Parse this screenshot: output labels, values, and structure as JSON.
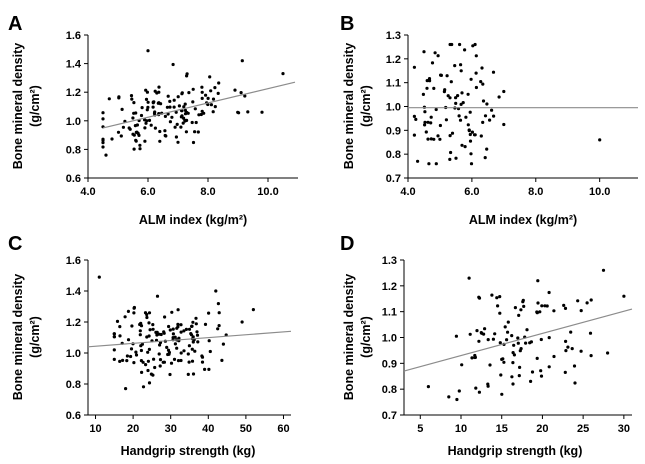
{
  "chart_data": [
    {
      "type": "scatter",
      "panel": "A",
      "xlabel": "ALM index (kg/m²)",
      "ylabel_line1": "Bone mineral density",
      "ylabel_line2": "(g/cm²)",
      "xlim": [
        4.0,
        11.0
      ],
      "ylim": [
        0.6,
        1.6
      ],
      "xticks": [
        4.0,
        6.0,
        8.0,
        10.0
      ],
      "xtick_labels": [
        "4.0",
        "6.0",
        "8.0",
        "10.0"
      ],
      "yticks": [
        0.6,
        0.8,
        1.0,
        1.2,
        1.4,
        1.6
      ],
      "ytick_labels": [
        "0.6",
        "0.8",
        "1.0",
        "1.2",
        "1.4",
        "1.6"
      ],
      "trend": {
        "x": [
          4.5,
          10.9
        ],
        "y": [
          0.95,
          1.27
        ]
      },
      "seed": 11,
      "n": 150,
      "dist": {
        "xmean": 6.6,
        "xsd": 1.1,
        "xmin": 4.5,
        "xmax": 10.6,
        "ymin": 0.76,
        "ymax": 1.49,
        "slope": 0.05,
        "x0": 4.5,
        "y0": 0.95,
        "ysd": 0.12
      },
      "extra_points": [
        {
          "x": 4.6,
          "y": 0.76
        },
        {
          "x": 6.0,
          "y": 1.49
        },
        {
          "x": 10.5,
          "y": 1.33
        },
        {
          "x": 9.8,
          "y": 1.06
        },
        {
          "x": 7.0,
          "y": 0.85
        }
      ]
    },
    {
      "type": "scatter",
      "panel": "B",
      "xlabel": "ALM index (kg/m²)",
      "ylabel_line1": "Bone mineral density",
      "ylabel_line2": "(g/cm²)",
      "xlim": [
        4.0,
        11.2
      ],
      "ylim": [
        0.7,
        1.3
      ],
      "xticks": [
        4.0,
        6.0,
        8.0,
        10.0
      ],
      "xtick_labels": [
        "4.0",
        "6.0",
        "8.0",
        "10.0"
      ],
      "yticks": [
        0.7,
        0.8,
        0.9,
        1.0,
        1.1,
        1.2,
        1.3
      ],
      "ytick_labels": [
        "0.7",
        "0.8",
        "0.9",
        "1.0",
        "1.1",
        "1.2",
        "1.3"
      ],
      "trend": {
        "x": [
          4.0,
          11.2
        ],
        "y": [
          0.995,
          0.995
        ]
      },
      "seed": 23,
      "n": 100,
      "dist": {
        "xmean": 5.4,
        "xsd": 0.7,
        "xmin": 4.2,
        "xmax": 7.0,
        "ymin": 0.76,
        "ymax": 1.26,
        "slope": 0.0,
        "x0": 4.0,
        "y0": 0.99,
        "ysd": 0.12
      },
      "extra_points": [
        {
          "x": 10.0,
          "y": 0.86
        },
        {
          "x": 6.1,
          "y": 1.26
        },
        {
          "x": 4.5,
          "y": 1.23
        },
        {
          "x": 4.3,
          "y": 0.77
        }
      ]
    },
    {
      "type": "scatter",
      "panel": "C",
      "xlabel": "Handgrip strength (kg)",
      "ylabel_line1": "Bone mineral density",
      "ylabel_line2": "(g/cm²)",
      "xlim": [
        8,
        62
      ],
      "ylim": [
        0.6,
        1.6
      ],
      "xticks": [
        10,
        20,
        30,
        40,
        50,
        60
      ],
      "xtick_labels": [
        "10",
        "20",
        "30",
        "40",
        "50",
        "60"
      ],
      "yticks": [
        0.6,
        0.8,
        1.0,
        1.2,
        1.4,
        1.6
      ],
      "ytick_labels": [
        "0.6",
        "0.8",
        "1.0",
        "1.2",
        "1.4",
        "1.6"
      ],
      "trend": {
        "x": [
          8,
          62
        ],
        "y": [
          1.04,
          1.14
        ]
      },
      "seed": 37,
      "n": 150,
      "dist": {
        "xmean": 28,
        "xsd": 7,
        "xmin": 15,
        "xmax": 45,
        "ymin": 0.78,
        "ymax": 1.42,
        "slope": 0.0019,
        "x0": 8,
        "y0": 1.04,
        "ysd": 0.12
      },
      "extra_points": [
        {
          "x": 11,
          "y": 1.49
        },
        {
          "x": 52,
          "y": 1.28
        },
        {
          "x": 49,
          "y": 1.2
        },
        {
          "x": 18,
          "y": 0.77
        },
        {
          "x": 42,
          "y": 1.4
        }
      ]
    },
    {
      "type": "scatter",
      "panel": "D",
      "xlabel": "Handgrip strength (kg)",
      "ylabel_line1": "Bone mineral density",
      "ylabel_line2": "(g/cm²)",
      "xlim": [
        3,
        31
      ],
      "ylim": [
        0.7,
        1.3
      ],
      "xticks": [
        5,
        10,
        15,
        20,
        25,
        30
      ],
      "xtick_labels": [
        "5",
        "10",
        "15",
        "20",
        "25",
        "30"
      ],
      "yticks": [
        0.7,
        0.8,
        0.9,
        1.0,
        1.1,
        1.2,
        1.3
      ],
      "ytick_labels": [
        "0.7",
        "0.8",
        "0.9",
        "1.0",
        "1.1",
        "1.2",
        "1.3"
      ],
      "trend": {
        "x": [
          3,
          31
        ],
        "y": [
          0.87,
          1.11
        ]
      },
      "seed": 51,
      "n": 100,
      "dist": {
        "xmean": 17,
        "xsd": 4.5,
        "xmin": 9,
        "xmax": 28,
        "ymin": 0.78,
        "ymax": 1.22,
        "slope": 0.0086,
        "x0": 3,
        "y0": 0.87,
        "ysd": 0.11
      },
      "extra_points": [
        {
          "x": 6,
          "y": 0.81
        },
        {
          "x": 8.5,
          "y": 0.77
        },
        {
          "x": 9.5,
          "y": 0.76
        },
        {
          "x": 27.5,
          "y": 1.26
        },
        {
          "x": 30,
          "y": 1.16
        },
        {
          "x": 28,
          "y": 0.94
        },
        {
          "x": 11,
          "y": 1.23
        }
      ]
    }
  ]
}
